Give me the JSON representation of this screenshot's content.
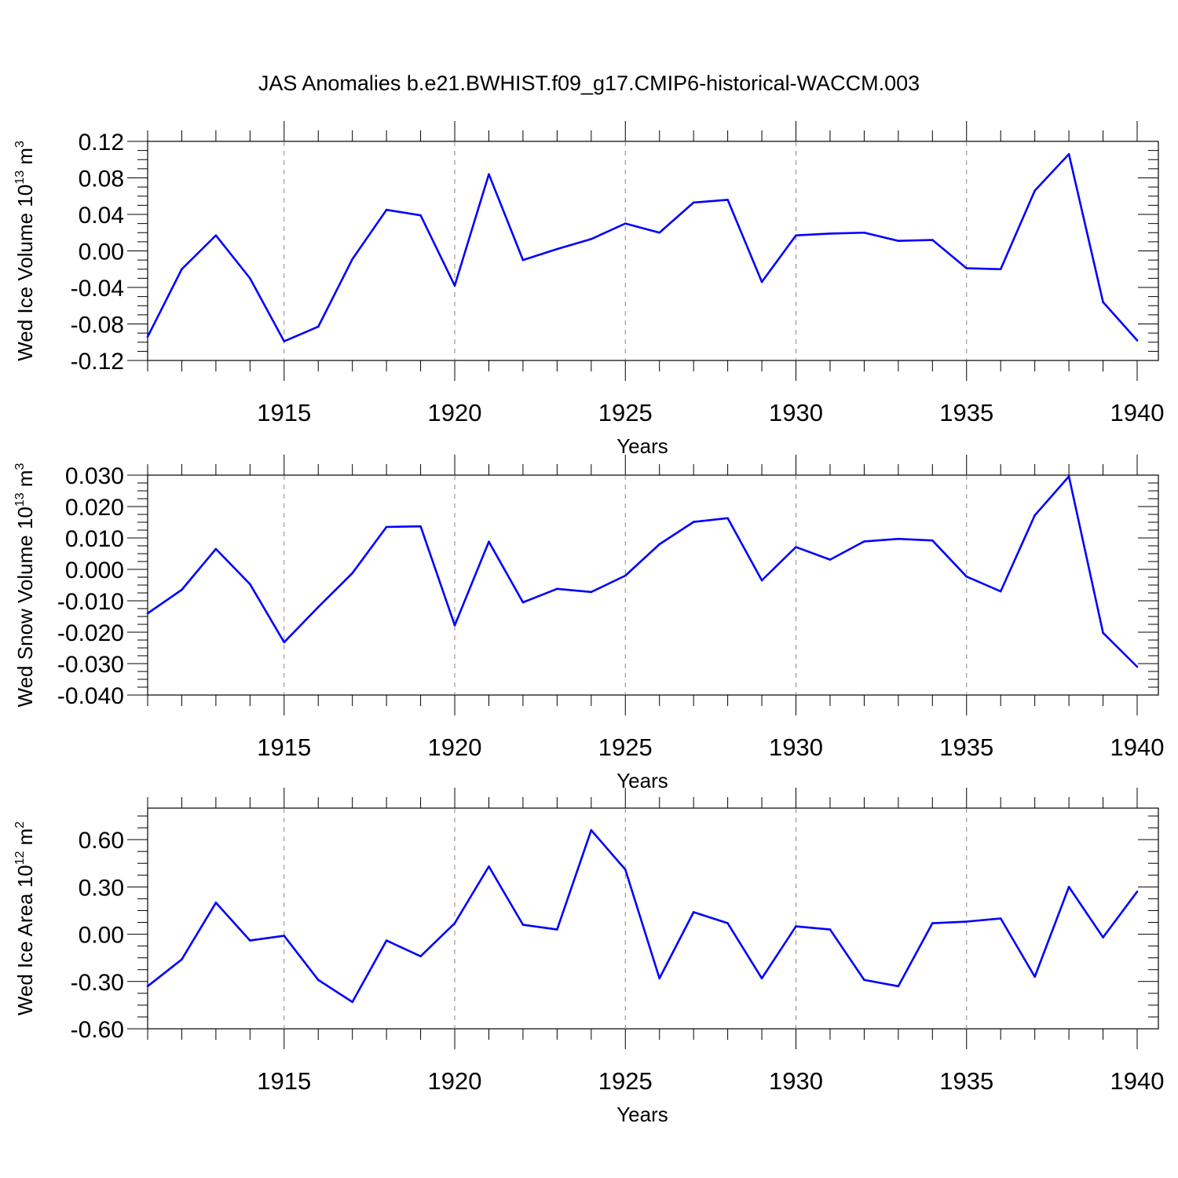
{
  "figure": {
    "title": "JAS Anomalies b.e21.BWHIST.f09_g17.CMIP6-historical-WACCM.003",
    "line_color": "#0000ff",
    "grid_color": "#888888"
  },
  "chart_data": [
    {
      "type": "line",
      "title": "",
      "xlabel": "Years",
      "ylabel": {
        "text": "Wed Ice Volume 10",
        "exponent": "13",
        "unit": " m",
        "unit_exponent": "3"
      },
      "xlim": [
        1911,
        1940
      ],
      "ylim": [
        -0.12,
        0.12
      ],
      "xticks": [
        1915,
        1920,
        1925,
        1930,
        1935,
        1940
      ],
      "yticks": [
        -0.12,
        -0.08,
        -0.04,
        0.0,
        0.04,
        0.08,
        0.12
      ],
      "ytick_labels": [
        "-0.12",
        "-0.08",
        "-0.04",
        "0.00",
        "0.04",
        "0.08",
        "0.12"
      ],
      "grid": "vertical dashed at major x ticks",
      "series": [
        {
          "name": "Wed Ice Volume",
          "x": [
            1911,
            1912,
            1913,
            1914,
            1915,
            1916,
            1917,
            1918,
            1919,
            1920,
            1921,
            1922,
            1923,
            1924,
            1925,
            1926,
            1927,
            1928,
            1929,
            1930,
            1931,
            1932,
            1933,
            1934,
            1935,
            1936,
            1937,
            1938,
            1939,
            1940
          ],
          "values": [
            -0.094,
            -0.02,
            0.017,
            -0.03,
            -0.099,
            -0.083,
            -0.009,
            0.045,
            0.039,
            -0.038,
            0.084,
            -0.01,
            0.002,
            0.013,
            0.03,
            0.02,
            0.053,
            0.056,
            -0.034,
            0.017,
            0.019,
            0.02,
            0.011,
            0.012,
            -0.019,
            -0.02,
            0.066,
            0.106,
            -0.056,
            -0.098
          ]
        }
      ]
    },
    {
      "type": "line",
      "title": "",
      "xlabel": "Years",
      "ylabel": {
        "text": "Wed Snow Volume 10",
        "exponent": "13",
        "unit": " m",
        "unit_exponent": "3"
      },
      "xlim": [
        1911,
        1940
      ],
      "ylim": [
        -0.04,
        0.03
      ],
      "xticks": [
        1915,
        1920,
        1925,
        1930,
        1935,
        1940
      ],
      "yticks": [
        -0.04,
        -0.03,
        -0.02,
        -0.01,
        0.0,
        0.01,
        0.02,
        0.03
      ],
      "ytick_labels": [
        "-0.040",
        "-0.030",
        "-0.020",
        "-0.010",
        "0.000",
        "0.010",
        "0.020",
        "0.030"
      ],
      "grid": "vertical dashed at major x ticks",
      "series": [
        {
          "name": "Wed Snow Volume",
          "x": [
            1911,
            1912,
            1913,
            1914,
            1915,
            1916,
            1917,
            1918,
            1919,
            1920,
            1921,
            1922,
            1923,
            1924,
            1925,
            1926,
            1927,
            1928,
            1929,
            1930,
            1931,
            1932,
            1933,
            1934,
            1935,
            1936,
            1937,
            1938,
            1939,
            1940
          ],
          "values": [
            -0.014,
            -0.0065,
            0.0065,
            -0.0047,
            -0.0232,
            -0.012,
            -0.0012,
            0.0135,
            0.0137,
            -0.0178,
            0.0088,
            -0.0105,
            -0.0062,
            -0.0072,
            -0.002,
            0.008,
            0.0151,
            0.0163,
            -0.0035,
            0.0071,
            0.0031,
            0.0089,
            0.0097,
            0.0092,
            -0.0023,
            -0.007,
            0.0172,
            0.0296,
            -0.0202,
            -0.031
          ]
        }
      ]
    },
    {
      "type": "line",
      "title": "",
      "xlabel": "Years",
      "ylabel": {
        "text": "Wed Ice Area 10",
        "exponent": "12",
        "unit": " m",
        "unit_exponent": "2"
      },
      "xlim": [
        1911,
        1940
      ],
      "ylim": [
        -0.6,
        0.8
      ],
      "xticks": [
        1915,
        1920,
        1925,
        1930,
        1935,
        1940
      ],
      "yticks": [
        -0.6,
        -0.3,
        0.0,
        0.3,
        0.6
      ],
      "ytick_labels": [
        "-0.60",
        "-0.30",
        "0.00",
        "0.30",
        "0.60"
      ],
      "grid": "vertical dashed at major x ticks",
      "series": [
        {
          "name": "Wed Ice Area",
          "x": [
            1911,
            1912,
            1913,
            1914,
            1915,
            1916,
            1917,
            1918,
            1919,
            1920,
            1921,
            1922,
            1923,
            1924,
            1925,
            1926,
            1927,
            1928,
            1929,
            1930,
            1931,
            1932,
            1933,
            1934,
            1935,
            1936,
            1937,
            1938,
            1939,
            1940
          ],
          "values": [
            -0.33,
            -0.16,
            0.2,
            -0.04,
            -0.01,
            -0.29,
            -0.43,
            -0.04,
            -0.14,
            0.07,
            0.43,
            0.06,
            0.03,
            0.66,
            0.41,
            -0.28,
            0.14,
            0.07,
            -0.28,
            0.05,
            0.03,
            -0.29,
            -0.33,
            0.07,
            0.08,
            0.1,
            -0.27,
            0.3,
            -0.02,
            0.27
          ]
        }
      ]
    }
  ]
}
